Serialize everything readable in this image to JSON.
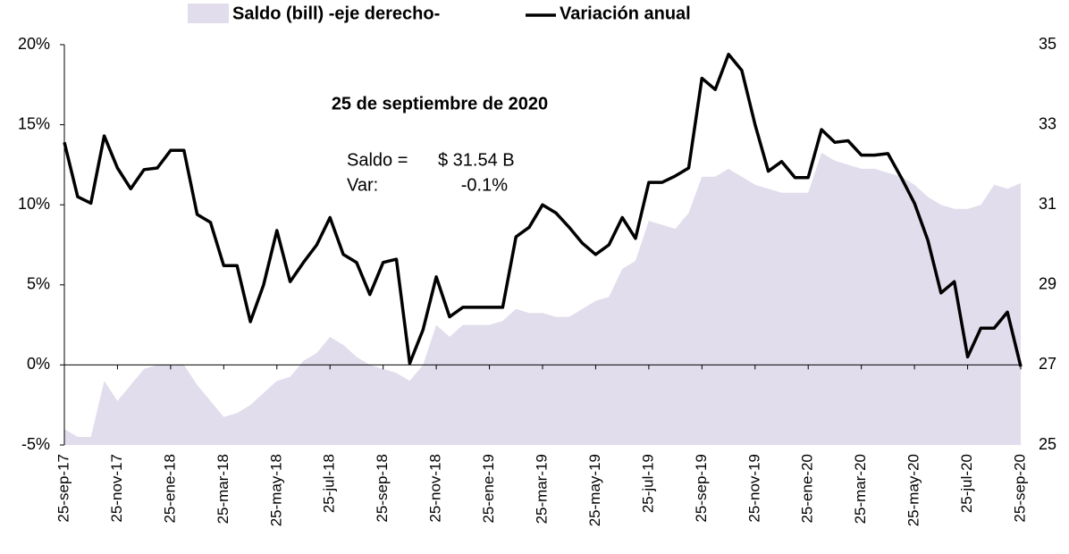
{
  "chart_data": {
    "type": "line",
    "annotations": {
      "title": "25 de septiembre de 2020",
      "saldo_label": "Saldo =",
      "saldo_value": "$ 31.54 B",
      "var_label": "Var:",
      "var_value": "-0.1%"
    },
    "categories": [
      "25-sep-17",
      null,
      null,
      null,
      "25-nov-17",
      null,
      null,
      null,
      "25-ene-18",
      null,
      null,
      null,
      "25-mar-18",
      null,
      null,
      null,
      "25-may-18",
      null,
      null,
      null,
      "25-jul-18",
      null,
      null,
      null,
      "25-sep-18",
      null,
      null,
      null,
      "25-nov-18",
      null,
      null,
      null,
      "25-ene-19",
      null,
      null,
      null,
      "25-mar-19",
      null,
      null,
      null,
      "25-may-19",
      null,
      null,
      null,
      "25-jul-19",
      null,
      null,
      null,
      "25-sep-19",
      null,
      null,
      null,
      "25-nov-19",
      null,
      null,
      null,
      "25-ene-20",
      null,
      null,
      null,
      "25-mar-20",
      null,
      null,
      null,
      "25-may-20",
      null,
      null,
      null,
      "25-jul-20",
      null,
      null,
      null,
      "25-sep-20"
    ],
    "series": [
      {
        "name": "Saldo (bill) -eje derecho-",
        "kind": "area",
        "axis": "y2",
        "color": "#e1ddec",
        "values": [
          25.4,
          25.2,
          25.2,
          26.6,
          26.1,
          26.5,
          26.9,
          27.0,
          27.0,
          27.0,
          26.5,
          26.1,
          25.7,
          25.8,
          26.0,
          26.3,
          26.6,
          26.7,
          27.1,
          27.3,
          27.7,
          27.5,
          27.2,
          27.0,
          26.9,
          26.8,
          26.6,
          27.0,
          28.0,
          27.7,
          28.0,
          28.0,
          28.0,
          28.1,
          28.4,
          28.3,
          28.3,
          28.2,
          28.2,
          28.4,
          28.6,
          28.7,
          29.4,
          29.6,
          30.6,
          30.5,
          30.4,
          30.8,
          31.7,
          31.7,
          31.9,
          31.7,
          31.5,
          31.4,
          31.3,
          31.3,
          31.3,
          32.3,
          32.1,
          32.0,
          31.9,
          31.9,
          31.8,
          31.7,
          31.5,
          31.2,
          31.0,
          30.9,
          30.9,
          31.0,
          31.5,
          31.4,
          31.54
        ]
      },
      {
        "name": "Variación anual",
        "kind": "line",
        "color": "#000000",
        "values": [
          13.9,
          10.5,
          10.1,
          14.3,
          12.3,
          11.0,
          12.2,
          12.3,
          13.4,
          13.4,
          9.4,
          8.9,
          6.2,
          6.2,
          2.7,
          5.0,
          8.4,
          5.2,
          6.4,
          7.5,
          9.2,
          6.9,
          6.4,
          4.4,
          6.4,
          6.6,
          0.1,
          2.2,
          5.5,
          3.0,
          3.6,
          3.6,
          3.6,
          3.6,
          8.0,
          8.6,
          10.0,
          9.5,
          8.6,
          7.6,
          6.9,
          7.5,
          9.2,
          7.9,
          11.4,
          11.4,
          11.8,
          12.3,
          17.9,
          17.2,
          19.4,
          18.4,
          15.0,
          12.1,
          12.7,
          11.7,
          11.7,
          14.7,
          13.9,
          14.0,
          13.1,
          13.1,
          13.2,
          11.7,
          10.1,
          7.8,
          4.5,
          5.2,
          0.5,
          2.3,
          2.3,
          3.3,
          -0.1
        ]
      }
    ],
    "ylim": [
      -5,
      20
    ],
    "yticks": [
      {
        "value": -5,
        "label": "-5%"
      },
      {
        "value": 0,
        "label": "0%"
      },
      {
        "value": 5,
        "label": "5%"
      },
      {
        "value": 10,
        "label": "10%"
      },
      {
        "value": 15,
        "label": "15%"
      },
      {
        "value": 20,
        "label": "20%"
      }
    ],
    "y2lim": [
      25,
      35
    ],
    "y2ticks": [
      25,
      27,
      29,
      31,
      33,
      35
    ]
  }
}
